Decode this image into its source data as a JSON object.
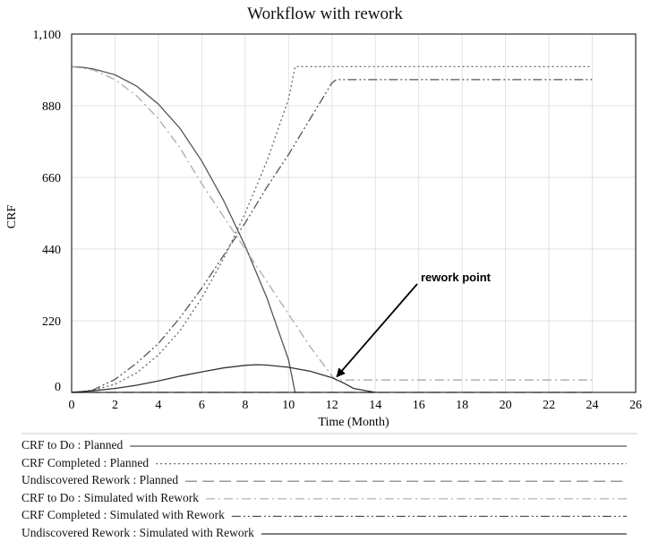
{
  "chart_data": {
    "type": "line",
    "title": "Workflow with rework",
    "xlabel": "Time (Month)",
    "ylabel": "CRF",
    "xlim": [
      0,
      26
    ],
    "ylim": [
      0,
      1100
    ],
    "x_ticks": [
      "0",
      "2",
      "4",
      "6",
      "8",
      "10",
      "12",
      "14",
      "16",
      "18",
      "20",
      "22",
      "24",
      "26"
    ],
    "y_ticks": [
      "0",
      "220",
      "440",
      "660",
      "880",
      "1,100"
    ],
    "grid": true,
    "legend_position": "bottom",
    "annotation": {
      "text": "rework point",
      "target": [
        12.1,
        40
      ]
    },
    "series": [
      {
        "name": "CRF to Do : Planned",
        "dash": "solid",
        "color": "#555555",
        "x": [
          0,
          0.5,
          1,
          2,
          3,
          4,
          5,
          6,
          7,
          8,
          9,
          10,
          10.3
        ],
        "y": [
          1000,
          998,
          993,
          975,
          940,
          885,
          810,
          710,
          590,
          450,
          290,
          100,
          0
        ]
      },
      {
        "name": "CRF Completed : Planned",
        "dash": "dotted",
        "color": "#666666",
        "x": [
          0,
          0.5,
          1,
          2,
          3,
          4,
          5,
          6,
          7,
          8,
          9,
          10,
          10.3,
          24
        ],
        "y": [
          0,
          2,
          7,
          25,
          60,
          115,
          190,
          290,
          410,
          550,
          710,
          900,
          1000,
          1000
        ]
      },
      {
        "name": "Undiscovered Rework : Planned",
        "dash": "long-dash",
        "color": "#777777",
        "x": [
          0,
          24
        ],
        "y": [
          0,
          0
        ]
      },
      {
        "name": "CRF to Do : Simulated with Rework",
        "dash": "dash-dot",
        "color": "#aaaaaa",
        "x": [
          0,
          1,
          2,
          3,
          4,
          5,
          6,
          7,
          8,
          9,
          10,
          11,
          12,
          12.2,
          24
        ],
        "y": [
          1000,
          990,
          960,
          910,
          840,
          750,
          640,
          540,
          440,
          340,
          240,
          140,
          50,
          38,
          38
        ]
      },
      {
        "name": "CRF Completed : Simulated with Rework",
        "dash": "dash-dot-dot",
        "color": "#555555",
        "x": [
          0,
          0.5,
          1,
          2,
          3,
          4,
          5,
          6,
          7,
          8,
          9,
          10,
          11,
          12,
          12.2,
          24
        ],
        "y": [
          0,
          2,
          8,
          40,
          90,
          150,
          230,
          320,
          420,
          520,
          630,
          730,
          840,
          950,
          960,
          960
        ]
      },
      {
        "name": "Undiscovered Rework : Simulated with Rework",
        "dash": "solid",
        "color": "#333333",
        "x": [
          0,
          1,
          2,
          3,
          4,
          5,
          6,
          7,
          8,
          8.5,
          9,
          10,
          11,
          12,
          12.5,
          13,
          14
        ],
        "y": [
          0,
          5,
          12,
          22,
          35,
          50,
          63,
          75,
          83,
          85,
          84,
          77,
          65,
          45,
          30,
          12,
          0
        ]
      }
    ]
  }
}
